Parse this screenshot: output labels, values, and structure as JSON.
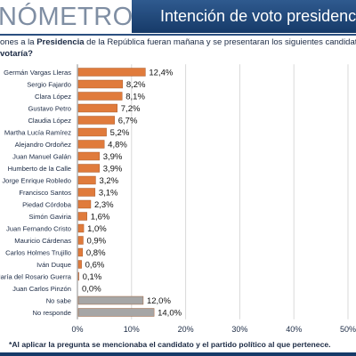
{
  "header": {
    "brand": "NÓMETRO",
    "title": "Intención de voto presidencia"
  },
  "question": {
    "line1_prefix": "ones a la ",
    "line1_bold": "Presidencia",
    "line1_suffix": " de la República fueran mañana y se presentaran los siguientes candidatos,",
    "line2_bold": "votaría?"
  },
  "footnote": "*Al aplicar la pregunta se mencionaba el candidato y el partido político al que pertenece.",
  "colors": {
    "candidate_bar": "#e07b3c",
    "other_bar": "#a6a6a6",
    "header_blue": "#163a68",
    "gridline": "#d9d9d9"
  },
  "chart_data": {
    "type": "bar",
    "orientation": "horizontal",
    "categories": [
      "Germán Vargas Lleras",
      "Sergio Fajardo",
      "Clara López",
      "Gustavo Petro",
      "Claudia López",
      "Martha Lucía Ramírez",
      "Alejandro Ordoñez",
      "Juan Manuel Galán",
      "Humberto de la Calle",
      "Jorge Enrique Robledo",
      "Francisco Santos",
      "Piedad Córdoba",
      "Simón Gaviria",
      "Juan Fernando Cristo",
      "Mauricio Cárdenas",
      "Carlos Holmes Trujillo",
      "Iván Duque",
      "María del Rosario Guerra",
      "Juan Carlos Pinzón",
      "No sabe",
      "No responde"
    ],
    "values": [
      12.4,
      8.2,
      8.1,
      7.2,
      6.7,
      5.2,
      4.8,
      3.9,
      3.9,
      3.2,
      3.1,
      2.3,
      1.6,
      1.0,
      0.9,
      0.8,
      0.6,
      0.1,
      0.0,
      12.0,
      14.0
    ],
    "value_labels": [
      "12,4%",
      "8,2%",
      "8,1%",
      "7,2%",
      "6,7%",
      "5,2%",
      "4,8%",
      "3,9%",
      "3,9%",
      "3,2%",
      "3,1%",
      "2,3%",
      "1,6%",
      "1,0%",
      "0,9%",
      "0,8%",
      "0,6%",
      "0,1%",
      "0,0%",
      "12,0%",
      "14,0%"
    ],
    "bar_groups": [
      "candidate",
      "candidate",
      "candidate",
      "candidate",
      "candidate",
      "candidate",
      "candidate",
      "candidate",
      "candidate",
      "candidate",
      "candidate",
      "candidate",
      "candidate",
      "candidate",
      "candidate",
      "candidate",
      "candidate",
      "candidate",
      "candidate",
      "other",
      "other"
    ],
    "xlim": [
      0,
      50
    ],
    "xticks": [
      0,
      10,
      20,
      30,
      40,
      50
    ],
    "xtick_labels": [
      "0%",
      "10%",
      "20%",
      "30%",
      "40%",
      "50%"
    ],
    "grid": true,
    "title": "",
    "xlabel": "",
    "ylabel": ""
  }
}
